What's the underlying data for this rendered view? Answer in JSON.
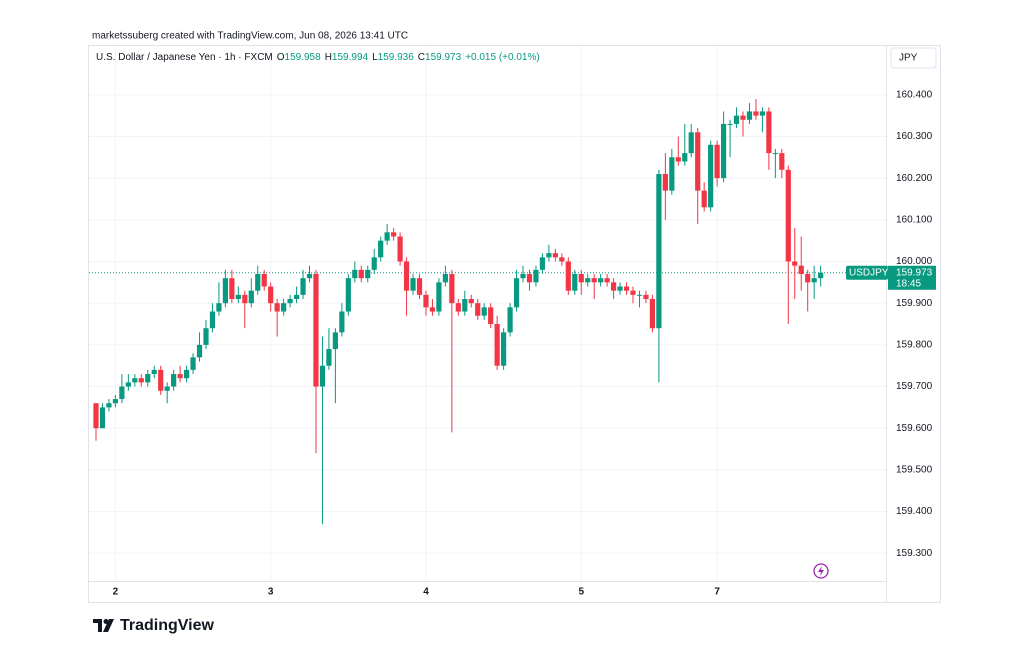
{
  "header": {
    "credit": "marketssuberg created with TradingView.com, Jun 08, 2026 13:41 UTC"
  },
  "chart_data": {
    "type": "candlestick",
    "title": "U.S. Dollar / Japanese Yen · 1h · FXCM",
    "ohlc_legend": [
      {
        "key": "O",
        "value": 159.958
      },
      {
        "key": "H",
        "value": 159.994
      },
      {
        "key": "L",
        "value": 159.936
      },
      {
        "key": "C",
        "value": 159.973
      }
    ],
    "change": "+0.015 (+0.01%)",
    "currency": "JPY",
    "symbol": "USDJPY",
    "last_price": {
      "value": 159.973,
      "label": "159.973"
    },
    "countdown": "18:45",
    "up_color": "#089981",
    "down_color": "#f23645",
    "categories": [
      null,
      null,
      null,
      "2",
      null,
      null,
      null,
      null,
      null,
      null,
      null,
      null,
      null,
      null,
      null,
      null,
      null,
      null,
      null,
      null,
      null,
      null,
      null,
      null,
      null,
      null,
      null,
      "3",
      null,
      null,
      null,
      null,
      null,
      null,
      null,
      null,
      null,
      null,
      null,
      null,
      null,
      null,
      null,
      null,
      null,
      null,
      null,
      null,
      null,
      null,
      null,
      "4",
      null,
      null,
      null,
      null,
      null,
      null,
      null,
      null,
      null,
      null,
      null,
      null,
      null,
      null,
      null,
      null,
      null,
      null,
      null,
      null,
      null,
      null,
      null,
      "5",
      null,
      null,
      null,
      null,
      null,
      null,
      null,
      null,
      null,
      null,
      null,
      null,
      null,
      null,
      null,
      null,
      null,
      null,
      null,
      null,
      "7",
      null,
      null,
      null,
      null,
      null,
      null,
      null,
      null,
      null,
      null,
      null,
      null,
      null,
      null,
      null,
      null
    ],
    "open": [
      159.66,
      159.6,
      159.65,
      159.66,
      159.67,
      159.7,
      159.71,
      159.72,
      159.71,
      159.73,
      159.74,
      159.69,
      159.7,
      159.73,
      159.72,
      159.74,
      159.77,
      159.8,
      159.84,
      159.88,
      159.9,
      159.96,
      159.91,
      159.92,
      159.9,
      159.93,
      159.97,
      159.94,
      159.9,
      159.88,
      159.9,
      159.91,
      159.92,
      159.96,
      159.97,
      159.7,
      159.75,
      159.79,
      159.83,
      159.88,
      159.96,
      159.98,
      159.96,
      159.98,
      160.01,
      160.05,
      160.07,
      160.06,
      160.0,
      159.93,
      159.96,
      159.92,
      159.89,
      159.88,
      159.95,
      159.97,
      159.9,
      159.88,
      159.91,
      159.9,
      159.87,
      159.89,
      159.85,
      159.75,
      159.83,
      159.89,
      159.96,
      159.97,
      159.95,
      159.98,
      160.01,
      160.02,
      160.01,
      160.0,
      159.93,
      159.97,
      159.95,
      159.96,
      159.95,
      159.96,
      159.95,
      159.93,
      159.94,
      159.93,
      159.92,
      159.92,
      159.91,
      159.84,
      160.21,
      160.17,
      160.25,
      160.24,
      160.26,
      160.31,
      160.17,
      160.13,
      160.28,
      160.2,
      160.33,
      160.33,
      160.35,
      160.34,
      160.36,
      160.35,
      160.36,
      160.26,
      160.26,
      160.22,
      160.0,
      159.99,
      159.97,
      159.95,
      159.96
    ],
    "high": [
      159.66,
      159.66,
      159.67,
      159.68,
      159.73,
      159.73,
      159.73,
      159.73,
      159.74,
      159.75,
      159.75,
      159.71,
      159.74,
      159.75,
      159.75,
      159.78,
      159.83,
      159.86,
      159.9,
      159.95,
      159.98,
      159.98,
      159.94,
      159.93,
      159.96,
      159.99,
      159.98,
      159.95,
      159.91,
      159.91,
      159.92,
      159.94,
      159.98,
      159.99,
      159.98,
      159.82,
      159.84,
      159.84,
      159.9,
      159.97,
      160.0,
      159.99,
      159.99,
      160.03,
      160.06,
      160.09,
      160.08,
      160.07,
      160.01,
      159.97,
      159.97,
      159.93,
      159.91,
      159.96,
      159.99,
      159.98,
      159.91,
      159.93,
      159.92,
      159.91,
      159.9,
      159.9,
      159.87,
      159.84,
      159.9,
      159.98,
      159.99,
      159.98,
      159.99,
      160.02,
      160.04,
      160.03,
      160.02,
      160.01,
      159.98,
      159.98,
      159.97,
      159.97,
      159.97,
      159.97,
      159.96,
      159.95,
      159.95,
      159.94,
      159.93,
      159.93,
      159.92,
      160.22,
      160.26,
      160.27,
      160.3,
      160.33,
      160.33,
      160.32,
      160.19,
      160.29,
      160.29,
      160.36,
      160.34,
      160.37,
      160.36,
      160.38,
      160.39,
      160.37,
      160.37,
      160.27,
      160.27,
      160.23,
      160.08,
      160.06,
      159.98,
      159.99,
      159.99
    ],
    "low": [
      159.57,
      159.6,
      159.64,
      159.65,
      159.66,
      159.69,
      159.7,
      159.7,
      159.7,
      159.72,
      159.68,
      159.66,
      159.69,
      159.71,
      159.71,
      159.73,
      159.76,
      159.79,
      159.83,
      159.87,
      159.89,
      159.9,
      159.9,
      159.84,
      159.89,
      159.92,
      159.93,
      159.88,
      159.82,
      159.87,
      159.89,
      159.9,
      159.91,
      159.95,
      159.54,
      159.37,
      159.74,
      159.66,
      159.82,
      159.87,
      159.95,
      159.95,
      159.95,
      159.97,
      160.0,
      160.04,
      160.05,
      159.99,
      159.87,
      159.92,
      159.91,
      159.87,
      159.87,
      159.87,
      159.94,
      159.59,
      159.87,
      159.87,
      159.89,
      159.86,
      159.86,
      159.84,
      159.74,
      159.74,
      159.82,
      159.88,
      159.95,
      159.93,
      159.94,
      159.97,
      160.0,
      160.0,
      159.99,
      159.92,
      159.92,
      159.92,
      159.94,
      159.91,
      159.94,
      159.94,
      159.91,
      159.92,
      159.92,
      159.9,
      159.89,
      159.9,
      159.83,
      159.71,
      160.1,
      160.16,
      160.23,
      160.23,
      160.25,
      160.09,
      160.12,
      160.12,
      160.18,
      160.19,
      160.25,
      160.32,
      160.3,
      160.33,
      160.34,
      160.31,
      160.22,
      160.2,
      160.2,
      159.85,
      159.91,
      159.93,
      159.88,
      159.91,
      159.94
    ],
    "close": [
      159.6,
      159.65,
      159.66,
      159.67,
      159.7,
      159.71,
      159.72,
      159.71,
      159.73,
      159.74,
      159.69,
      159.7,
      159.73,
      159.72,
      159.74,
      159.77,
      159.8,
      159.84,
      159.88,
      159.9,
      159.96,
      159.91,
      159.92,
      159.9,
      159.93,
      159.97,
      159.94,
      159.9,
      159.88,
      159.9,
      159.91,
      159.92,
      159.96,
      159.97,
      159.7,
      159.75,
      159.79,
      159.83,
      159.88,
      159.96,
      159.98,
      159.96,
      159.98,
      160.01,
      160.05,
      160.07,
      160.06,
      160.0,
      159.93,
      159.96,
      159.92,
      159.89,
      159.88,
      159.95,
      159.97,
      159.9,
      159.88,
      159.91,
      159.9,
      159.87,
      159.89,
      159.85,
      159.75,
      159.83,
      159.89,
      159.96,
      159.97,
      159.95,
      159.98,
      160.01,
      160.02,
      160.01,
      160.0,
      159.93,
      159.97,
      159.95,
      159.96,
      159.95,
      159.96,
      159.95,
      159.93,
      159.94,
      159.93,
      159.92,
      159.92,
      159.91,
      159.84,
      160.21,
      160.17,
      160.25,
      160.24,
      160.26,
      160.31,
      160.17,
      160.13,
      160.28,
      160.2,
      160.33,
      160.33,
      160.35,
      160.34,
      160.36,
      160.35,
      160.36,
      160.26,
      160.26,
      160.22,
      160.0,
      159.99,
      159.97,
      159.95,
      159.96,
      159.973
    ],
    "ylim": [
      159.2335,
      160.517
    ],
    "yticks": [
      {
        "value": 159.3,
        "label": "159.300"
      },
      {
        "value": 159.4,
        "label": "159.400"
      },
      {
        "value": 159.5,
        "label": "159.500"
      },
      {
        "value": 159.6,
        "label": "159.600"
      },
      {
        "value": 159.7,
        "label": "159.700"
      },
      {
        "value": 159.8,
        "label": "159.800"
      },
      {
        "value": 159.9,
        "label": "159.900"
      },
      {
        "value": 160.0,
        "label": "160.000"
      },
      {
        "value": 160.1,
        "label": "160.100"
      },
      {
        "value": 160.2,
        "label": "160.200"
      },
      {
        "value": 160.3,
        "label": "160.300"
      },
      {
        "value": 160.4,
        "label": "160.400"
      }
    ],
    "grid": true
  },
  "footer": {
    "brand": "TradingView"
  }
}
